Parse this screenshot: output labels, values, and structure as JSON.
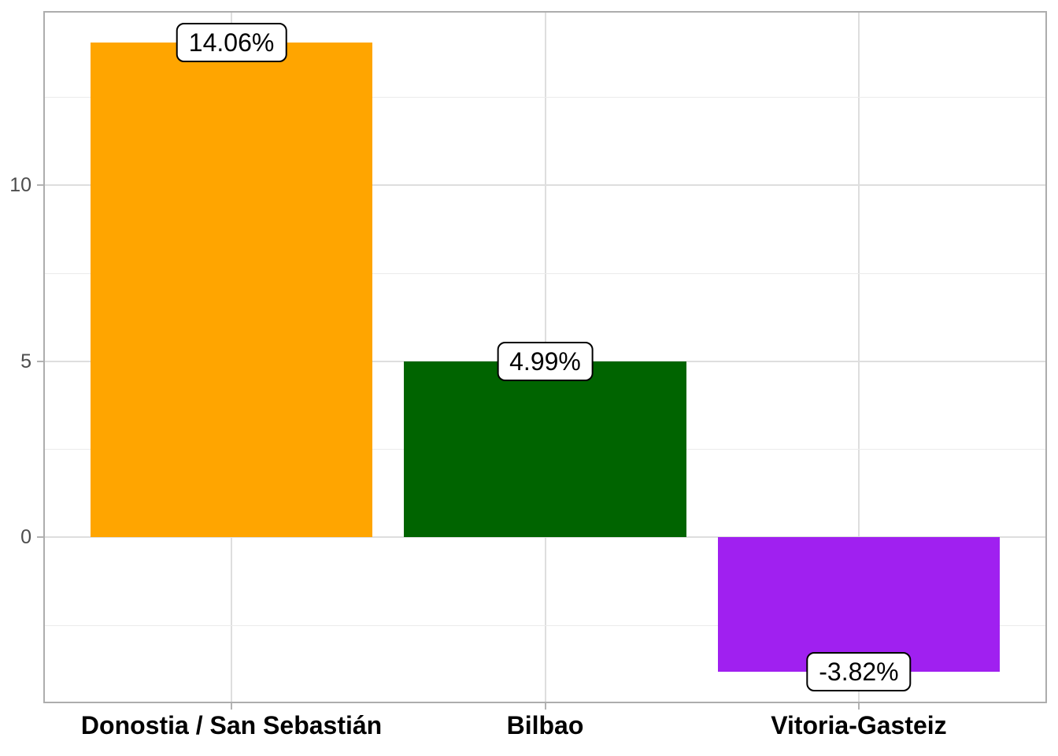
{
  "chart_data": {
    "type": "bar",
    "title": "",
    "xlabel": "",
    "ylabel": "",
    "legend": "none",
    "grid": "on",
    "categories": [
      "Donostia / San Sebastián",
      "Bilbao",
      "Vitoria-Gasteiz"
    ],
    "values": [
      14.06,
      4.99,
      -3.82
    ],
    "data_labels": [
      "14.06%",
      "4.99%",
      "-3.82%"
    ],
    "bar_colors": [
      "#FFA500",
      "#006400",
      "#A020F0"
    ],
    "yticks": [
      0,
      5,
      10
    ],
    "ytick_labels": [
      "0",
      "5",
      "10"
    ],
    "minor_yticks": [
      -2.5,
      2.5,
      7.5,
      12.5
    ],
    "ylim": [
      -4.71,
      14.95
    ],
    "colors": {
      "background": "#FFFFFF",
      "panel_background": "#FFFFFF",
      "panel_border": "#ADADAD",
      "grid_major": "#DEDEDE",
      "grid_minor": "#EBEBEB",
      "tick": "#B3B3B3",
      "axis_text_y": "#4D4D4D",
      "axis_text_x": "#000000",
      "value_label_text": "#000000",
      "value_label_bg": "#FFFFFF",
      "value_label_border": "#000000"
    }
  }
}
